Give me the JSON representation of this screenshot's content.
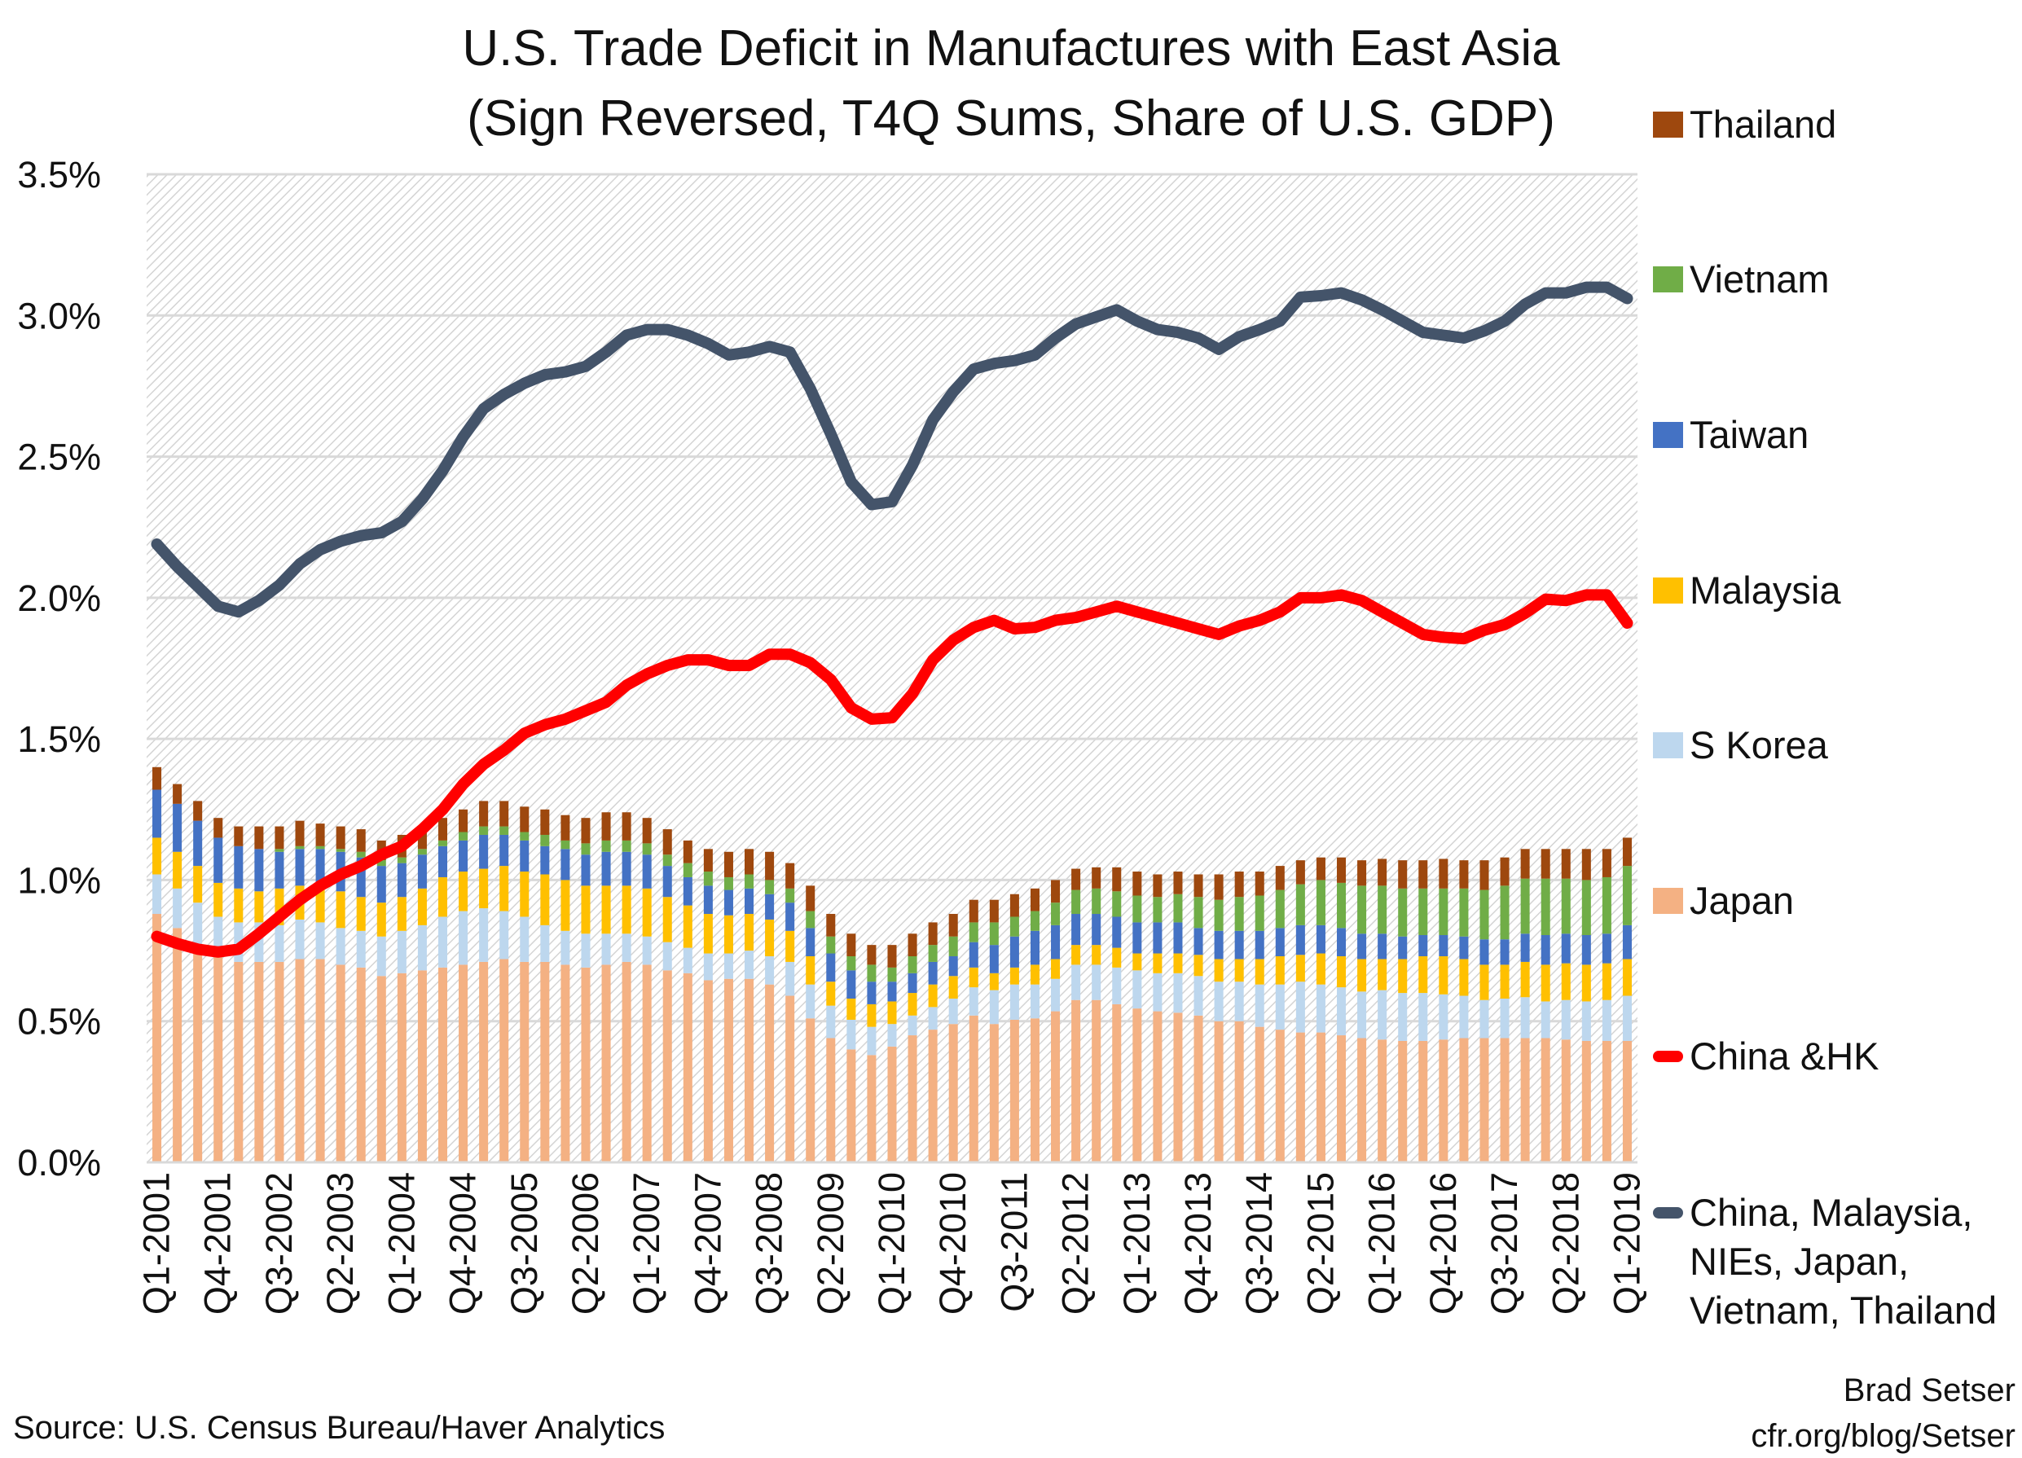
{
  "chart_data": {
    "type": "bar",
    "stacked": true,
    "title": "U.S. Trade Deficit in Manufactures with East Asia",
    "subtitle": "(Sign Reversed, T4Q Sums, Share of U.S. GDP)",
    "xlabel": "",
    "ylabel": "",
    "ylim": [
      0,
      3.5
    ],
    "yticks": [
      "0.0%",
      "0.5%",
      "1.0%",
      "1.5%",
      "2.0%",
      "2.5%",
      "3.0%",
      "3.5%"
    ],
    "grid": true,
    "legend_position": "right",
    "categories": [
      "Q1-2001",
      "Q2-2001",
      "Q3-2001",
      "Q4-2001",
      "Q1-2002",
      "Q2-2002",
      "Q3-2002",
      "Q4-2002",
      "Q1-2003",
      "Q2-2003",
      "Q3-2003",
      "Q4-2003",
      "Q1-2004",
      "Q2-2004",
      "Q3-2004",
      "Q4-2004",
      "Q1-2005",
      "Q2-2005",
      "Q3-2005",
      "Q4-2005",
      "Q1-2006",
      "Q2-2006",
      "Q3-2006",
      "Q4-2006",
      "Q1-2007",
      "Q2-2007",
      "Q3-2007",
      "Q4-2007",
      "Q1-2008",
      "Q2-2008",
      "Q3-2008",
      "Q4-2008",
      "Q1-2009",
      "Q2-2009",
      "Q3-2009",
      "Q4-2009",
      "Q1-2010",
      "Q2-2010",
      "Q3-2010",
      "Q4-2010",
      "Q1-2011",
      "Q2-2011",
      "Q3-2011",
      "Q4-2011",
      "Q1-2012",
      "Q2-2012",
      "Q3-2012",
      "Q4-2012",
      "Q1-2013",
      "Q2-2013",
      "Q3-2013",
      "Q4-2013",
      "Q1-2014",
      "Q2-2014",
      "Q3-2014",
      "Q4-2014",
      "Q1-2015",
      "Q2-2015",
      "Q3-2015",
      "Q4-2015",
      "Q1-2016",
      "Q2-2016",
      "Q3-2016",
      "Q4-2016",
      "Q1-2017",
      "Q2-2017",
      "Q3-2017",
      "Q4-2017",
      "Q1-2018",
      "Q2-2018",
      "Q3-2018",
      "Q4-2018",
      "Q1-2019"
    ],
    "tick_every": 3,
    "bar_series": [
      {
        "name": "Japan",
        "color": "#F4B183",
        "values": [
          0.88,
          0.83,
          0.76,
          0.74,
          0.71,
          0.71,
          0.71,
          0.72,
          0.72,
          0.7,
          0.69,
          0.66,
          0.67,
          0.68,
          0.69,
          0.7,
          0.71,
          0.72,
          0.71,
          0.71,
          0.7,
          0.69,
          0.7,
          0.71,
          0.7,
          0.68,
          0.67,
          0.645,
          0.65,
          0.65,
          0.63,
          0.59,
          0.51,
          0.44,
          0.4,
          0.38,
          0.41,
          0.45,
          0.47,
          0.49,
          0.52,
          0.49,
          0.505,
          0.51,
          0.535,
          0.575,
          0.575,
          0.56,
          0.545,
          0.535,
          0.53,
          0.52,
          0.5,
          0.5,
          0.48,
          0.47,
          0.46,
          0.46,
          0.45,
          0.44,
          0.435,
          0.43,
          0.43,
          0.435,
          0.44,
          0.44,
          0.44,
          0.44,
          0.44,
          0.435,
          0.43,
          0.43,
          0.43
        ]
      },
      {
        "name": "S Korea",
        "color": "#BDD7EE",
        "values": [
          0.14,
          0.14,
          0.16,
          0.13,
          0.14,
          0.14,
          0.13,
          0.14,
          0.13,
          0.13,
          0.13,
          0.14,
          0.15,
          0.16,
          0.18,
          0.19,
          0.19,
          0.17,
          0.16,
          0.13,
          0.12,
          0.12,
          0.11,
          0.1,
          0.1,
          0.1,
          0.09,
          0.095,
          0.09,
          0.1,
          0.1,
          0.12,
          0.12,
          0.115,
          0.105,
          0.1,
          0.08,
          0.07,
          0.08,
          0.09,
          0.1,
          0.12,
          0.125,
          0.12,
          0.115,
          0.125,
          0.125,
          0.13,
          0.135,
          0.135,
          0.14,
          0.14,
          0.14,
          0.14,
          0.15,
          0.16,
          0.18,
          0.17,
          0.17,
          0.165,
          0.175,
          0.17,
          0.17,
          0.16,
          0.15,
          0.135,
          0.14,
          0.145,
          0.13,
          0.14,
          0.14,
          0.145,
          0.16
        ]
      },
      {
        "name": "Malaysia",
        "color": "#FFC000",
        "values": [
          0.13,
          0.13,
          0.13,
          0.12,
          0.12,
          0.11,
          0.13,
          0.12,
          0.12,
          0.13,
          0.12,
          0.12,
          0.12,
          0.13,
          0.14,
          0.14,
          0.14,
          0.16,
          0.16,
          0.18,
          0.18,
          0.17,
          0.17,
          0.17,
          0.17,
          0.16,
          0.15,
          0.14,
          0.135,
          0.13,
          0.13,
          0.11,
          0.1,
          0.085,
          0.075,
          0.08,
          0.08,
          0.08,
          0.08,
          0.08,
          0.07,
          0.06,
          0.06,
          0.07,
          0.07,
          0.07,
          0.07,
          0.07,
          0.06,
          0.07,
          0.07,
          0.075,
          0.08,
          0.08,
          0.09,
          0.1,
          0.095,
          0.11,
          0.11,
          0.115,
          0.11,
          0.12,
          0.13,
          0.135,
          0.13,
          0.125,
          0.12,
          0.125,
          0.13,
          0.13,
          0.13,
          0.13,
          0.13
        ]
      },
      {
        "name": "Taiwan",
        "color": "#4472C4",
        "values": [
          0.17,
          0.17,
          0.16,
          0.16,
          0.15,
          0.15,
          0.13,
          0.13,
          0.14,
          0.14,
          0.14,
          0.13,
          0.12,
          0.12,
          0.11,
          0.11,
          0.12,
          0.11,
          0.11,
          0.1,
          0.11,
          0.11,
          0.12,
          0.12,
          0.12,
          0.11,
          0.1,
          0.1,
          0.09,
          0.09,
          0.09,
          0.1,
          0.1,
          0.1,
          0.1,
          0.08,
          0.07,
          0.07,
          0.08,
          0.07,
          0.09,
          0.1,
          0.11,
          0.12,
          0.12,
          0.11,
          0.11,
          0.11,
          0.11,
          0.11,
          0.11,
          0.095,
          0.1,
          0.1,
          0.1,
          0.1,
          0.105,
          0.1,
          0.1,
          0.09,
          0.09,
          0.08,
          0.075,
          0.075,
          0.08,
          0.09,
          0.09,
          0.1,
          0.105,
          0.105,
          0.105,
          0.105,
          0.12
        ]
      },
      {
        "name": "Vietnam",
        "color": "#70AD47",
        "values": [
          0,
          0,
          0,
          0,
          0,
          0,
          0.01,
          0.01,
          0.01,
          0.01,
          0.02,
          0.02,
          0.02,
          0.02,
          0.02,
          0.03,
          0.03,
          0.03,
          0.03,
          0.04,
          0.03,
          0.04,
          0.04,
          0.04,
          0.04,
          0.04,
          0.05,
          0.05,
          0.045,
          0.05,
          0.05,
          0.05,
          0.06,
          0.06,
          0.05,
          0.06,
          0.05,
          0.06,
          0.06,
          0.07,
          0.07,
          0.08,
          0.07,
          0.07,
          0.08,
          0.085,
          0.09,
          0.09,
          0.095,
          0.09,
          0.1,
          0.11,
          0.11,
          0.12,
          0.125,
          0.135,
          0.145,
          0.16,
          0.16,
          0.17,
          0.17,
          0.17,
          0.165,
          0.165,
          0.17,
          0.175,
          0.19,
          0.195,
          0.2,
          0.195,
          0.195,
          0.2,
          0.21
        ]
      },
      {
        "name": "Thailand",
        "color": "#9E480E",
        "values": [
          0.08,
          0.07,
          0.07,
          0.07,
          0.07,
          0.08,
          0.08,
          0.09,
          0.08,
          0.08,
          0.08,
          0.07,
          0.08,
          0.07,
          0.08,
          0.08,
          0.09,
          0.09,
          0.09,
          0.09,
          0.09,
          0.09,
          0.1,
          0.1,
          0.09,
          0.09,
          0.08,
          0.08,
          0.09,
          0.09,
          0.1,
          0.09,
          0.09,
          0.08,
          0.08,
          0.07,
          0.08,
          0.08,
          0.08,
          0.08,
          0.08,
          0.08,
          0.08,
          0.08,
          0.08,
          0.075,
          0.075,
          0.085,
          0.085,
          0.08,
          0.08,
          0.08,
          0.09,
          0.09,
          0.085,
          0.085,
          0.085,
          0.08,
          0.09,
          0.09,
          0.095,
          0.1,
          0.1,
          0.105,
          0.1,
          0.105,
          0.1,
          0.105,
          0.105,
          0.105,
          0.11,
          0.1,
          0.1
        ]
      }
    ],
    "line_series": [
      {
        "name": "China &HK",
        "color": "#FF0000",
        "values": [
          0.8,
          0.775,
          0.755,
          0.745,
          0.755,
          0.81,
          0.87,
          0.93,
          0.98,
          1.02,
          1.05,
          1.09,
          1.12,
          1.18,
          1.25,
          1.34,
          1.41,
          1.46,
          1.52,
          1.55,
          1.57,
          1.6,
          1.63,
          1.69,
          1.73,
          1.76,
          1.78,
          1.78,
          1.76,
          1.76,
          1.8,
          1.8,
          1.77,
          1.71,
          1.61,
          1.57,
          1.575,
          1.66,
          1.78,
          1.85,
          1.895,
          1.92,
          1.89,
          1.895,
          1.92,
          1.93,
          1.95,
          1.97,
          1.95,
          1.93,
          1.91,
          1.89,
          1.87,
          1.9,
          1.92,
          1.95,
          2.0,
          2.0,
          2.01,
          1.99,
          1.95,
          1.91,
          1.87,
          1.86,
          1.855,
          1.885,
          1.905,
          1.945,
          1.995,
          1.99,
          2.01,
          2.01,
          1.91
        ]
      },
      {
        "name": "China, Malaysia, NIEs, Japan, Vietnam, Thailand",
        "name_lines": [
          "China, Malaysia,",
          "NIEs, Japan,",
          "Vietnam, Thailand"
        ],
        "color": "#44546A",
        "values": [
          2.19,
          2.11,
          2.04,
          1.97,
          1.95,
          1.99,
          2.045,
          2.12,
          2.17,
          2.2,
          2.22,
          2.23,
          2.27,
          2.35,
          2.45,
          2.57,
          2.67,
          2.72,
          2.76,
          2.79,
          2.8,
          2.82,
          2.87,
          2.93,
          2.95,
          2.95,
          2.93,
          2.9,
          2.86,
          2.87,
          2.89,
          2.87,
          2.74,
          2.58,
          2.41,
          2.33,
          2.34,
          2.47,
          2.63,
          2.73,
          2.81,
          2.83,
          2.84,
          2.86,
          2.92,
          2.97,
          2.995,
          3.02,
          2.98,
          2.95,
          2.94,
          2.92,
          2.88,
          2.925,
          2.95,
          2.98,
          3.065,
          3.07,
          3.08,
          3.055,
          3.02,
          2.98,
          2.94,
          2.93,
          2.92,
          2.945,
          2.98,
          3.04,
          3.08,
          3.08,
          3.1,
          3.1,
          3.06
        ]
      }
    ],
    "legend_order": [
      "Thailand",
      "Vietnam",
      "Taiwan",
      "Malaysia",
      "S Korea",
      "Japan",
      "China &HK",
      "China, Malaysia, NIEs, Japan, Vietnam, Thailand"
    ]
  },
  "footer": {
    "source": "Source: U.S. Census Bureau/Haver Analytics",
    "author": "Brad Setser",
    "url": "cfr.org/blog/Setser"
  }
}
